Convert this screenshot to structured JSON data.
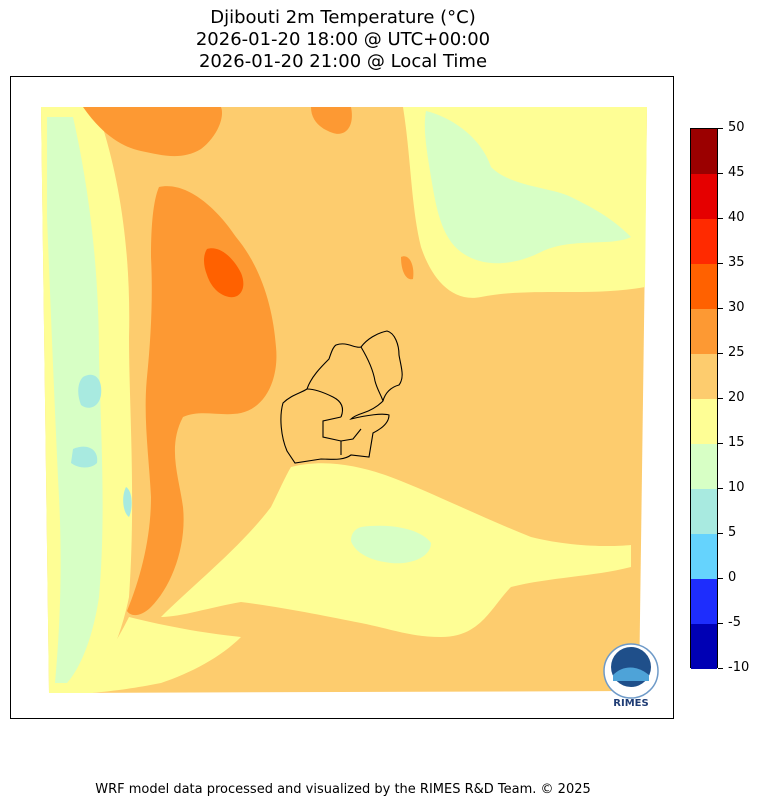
{
  "header": {
    "title_line1": "Djibouti 2m Temperature (°C)",
    "title_line2": "2026-01-20 18:00 @ UTC+00:00",
    "title_line3": "2026-01-20 21:00 @ Local Time"
  },
  "colorbar": {
    "ticks": [
      "50",
      "45",
      "40",
      "35",
      "30",
      "25",
      "20",
      "15",
      "10",
      "5",
      "0",
      "-5",
      "-10"
    ],
    "colors": [
      "#9b0000",
      "#e50000",
      "#ff2a00",
      "#ff6100",
      "#fd9933",
      "#fdcc6e",
      "#fefe95",
      "#d7ffc5",
      "#a8eae0",
      "#65d3fd",
      "#1e2dfd",
      "#0000b4"
    ]
  },
  "logo": {
    "text": "RIMES"
  },
  "footer": {
    "credit": "WRF model data processed and visualized by the RIMES R&D Team. © 2025"
  }
}
